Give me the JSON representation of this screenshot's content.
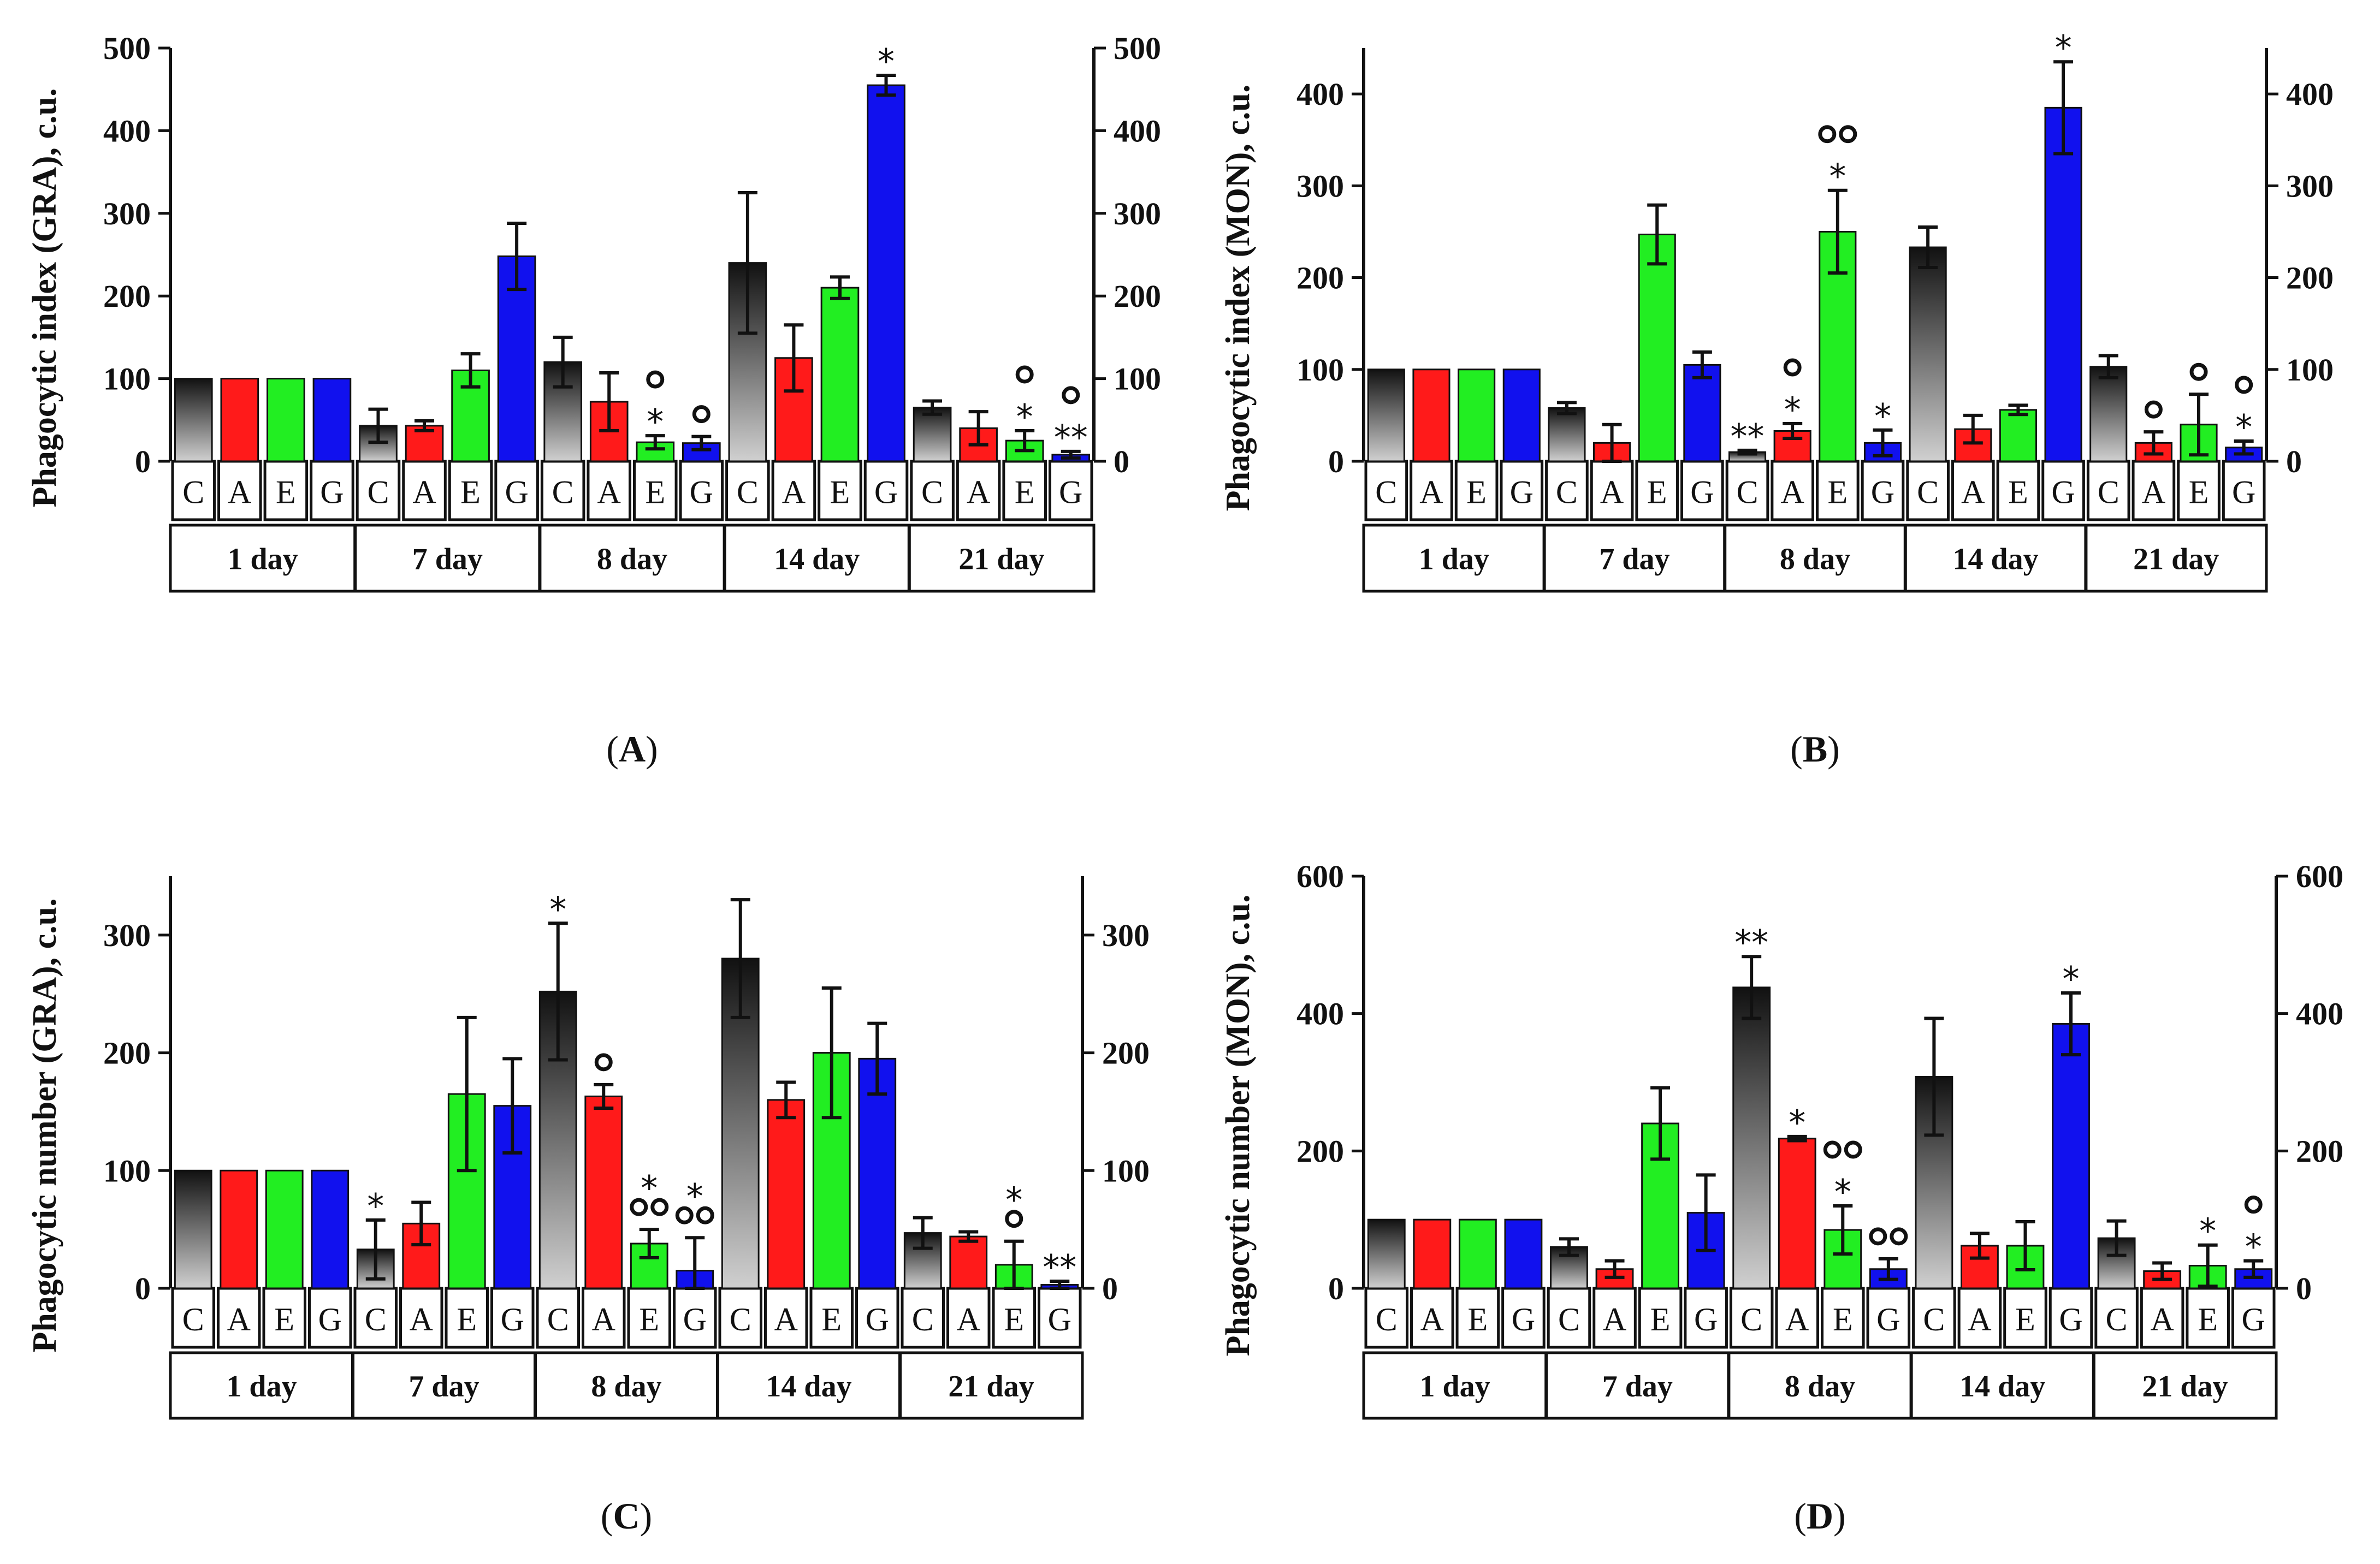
{
  "colors": {
    "C_top": "#111111",
    "C_bottom": "#d0d0d0",
    "A": "#ff1a1a",
    "E": "#22ee22",
    "G": "#1111ee"
  },
  "chart_data": [
    {
      "id": "A",
      "type": "bar",
      "panel_label": "A",
      "ylabel": "Phagocytic index (GRA), c.u.",
      "ylim": [
        0,
        500
      ],
      "yticks": [
        0,
        100,
        200,
        300,
        400,
        500
      ],
      "groups": [
        "1 day",
        "7 day",
        "8 day",
        "14 day",
        "21 day"
      ],
      "categories": [
        "C",
        "A",
        "E",
        "G"
      ],
      "values": [
        [
          100,
          100,
          100,
          100
        ],
        [
          43,
          43,
          110,
          248
        ],
        [
          120,
          72,
          23,
          22
        ],
        [
          240,
          125,
          210,
          455
        ],
        [
          65,
          40,
          25,
          8
        ]
      ],
      "errors": [
        [
          0,
          0,
          0,
          0
        ],
        [
          20,
          6,
          20,
          40
        ],
        [
          30,
          35,
          8,
          8
        ],
        [
          85,
          40,
          13,
          12
        ],
        [
          8,
          20,
          12,
          4
        ]
      ],
      "annotations": [
        {
          "g": 2,
          "c": 2,
          "lines": [
            "o",
            "*"
          ]
        },
        {
          "g": 2,
          "c": 3,
          "lines": [
            "o"
          ]
        },
        {
          "g": 3,
          "c": 3,
          "lines": [
            "*"
          ]
        },
        {
          "g": 4,
          "c": 2,
          "lines": [
            "o",
            "*"
          ]
        },
        {
          "g": 4,
          "c": 3,
          "lines": [
            "o",
            "**"
          ]
        }
      ]
    },
    {
      "id": "B",
      "type": "bar",
      "panel_label": "B",
      "ylabel": "Phagocytic index (MON), c.u.",
      "ylim": [
        0,
        450
      ],
      "yticks": [
        0,
        100,
        200,
        300,
        400
      ],
      "groups": [
        "1 day",
        "7 day",
        "8 day",
        "14 day",
        "21 day"
      ],
      "categories": [
        "C",
        "A",
        "E",
        "G"
      ],
      "values": [
        [
          100,
          100,
          100,
          100
        ],
        [
          58,
          20,
          247,
          105
        ],
        [
          10,
          33,
          250,
          20
        ],
        [
          233,
          35,
          56,
          385
        ],
        [
          103,
          20,
          40,
          15
        ]
      ],
      "errors": [
        [
          0,
          0,
          0,
          0
        ],
        [
          6,
          20,
          32,
          14
        ],
        [
          2,
          8,
          45,
          14
        ],
        [
          22,
          15,
          5,
          50
        ],
        [
          12,
          12,
          33,
          7
        ]
      ],
      "annotations": [
        {
          "g": 2,
          "c": 0,
          "lines": [
            "**"
          ]
        },
        {
          "g": 2,
          "c": 1,
          "lines": [
            "o",
            "*"
          ]
        },
        {
          "g": 2,
          "c": 2,
          "lines": [
            "oo",
            "*"
          ]
        },
        {
          "g": 2,
          "c": 3,
          "lines": [
            "*"
          ]
        },
        {
          "g": 3,
          "c": 3,
          "lines": [
            "*"
          ]
        },
        {
          "g": 4,
          "c": 1,
          "lines": [
            "o"
          ]
        },
        {
          "g": 4,
          "c": 2,
          "lines": [
            "o"
          ]
        },
        {
          "g": 4,
          "c": 3,
          "lines": [
            "o",
            "*"
          ]
        }
      ]
    },
    {
      "id": "C",
      "type": "bar",
      "panel_label": "C",
      "ylabel": "Phagocytic number (GRA), c.u.",
      "ylim": [
        0,
        350
      ],
      "yticks": [
        0,
        100,
        200,
        300
      ],
      "groups": [
        "1 day",
        "7 day",
        "8 day",
        "14 day",
        "21 day"
      ],
      "categories": [
        "C",
        "A",
        "E",
        "G"
      ],
      "values": [
        [
          100,
          100,
          100,
          100
        ],
        [
          33,
          55,
          165,
          155
        ],
        [
          252,
          163,
          38,
          15
        ],
        [
          280,
          160,
          200,
          195
        ],
        [
          47,
          44,
          20,
          3
        ]
      ],
      "errors": [
        [
          0,
          0,
          0,
          0
        ],
        [
          25,
          18,
          65,
          40
        ],
        [
          58,
          10,
          12,
          28
        ],
        [
          50,
          15,
          55,
          30
        ],
        [
          13,
          4,
          20,
          3
        ]
      ],
      "annotations": [
        {
          "g": 1,
          "c": 0,
          "lines": [
            "*"
          ]
        },
        {
          "g": 2,
          "c": 0,
          "lines": [
            "*"
          ]
        },
        {
          "g": 2,
          "c": 1,
          "lines": [
            "o"
          ]
        },
        {
          "g": 2,
          "c": 2,
          "lines": [
            "*",
            "oo"
          ]
        },
        {
          "g": 2,
          "c": 3,
          "lines": [
            "*",
            "oo"
          ]
        },
        {
          "g": 4,
          "c": 2,
          "lines": [
            "*",
            "o"
          ]
        },
        {
          "g": 4,
          "c": 3,
          "lines": [
            "**"
          ]
        }
      ]
    },
    {
      "id": "D",
      "type": "bar",
      "panel_label": "D",
      "ylabel": "Phagocytic number (MON), c.u.",
      "ylim": [
        0,
        600
      ],
      "yticks": [
        0,
        200,
        400,
        600
      ],
      "groups": [
        "1 day",
        "7 day",
        "8 day",
        "14 day",
        "21 day"
      ],
      "categories": [
        "C",
        "A",
        "E",
        "G"
      ],
      "values": [
        [
          100,
          100,
          100,
          100
        ],
        [
          60,
          28,
          240,
          110
        ],
        [
          438,
          218,
          85,
          28
        ],
        [
          308,
          62,
          62,
          385
        ],
        [
          73,
          25,
          33,
          28
        ]
      ],
      "errors": [
        [
          0,
          0,
          0,
          0
        ],
        [
          12,
          12,
          52,
          55
        ],
        [
          45,
          3,
          35,
          15
        ],
        [
          85,
          18,
          35,
          45
        ],
        [
          25,
          12,
          30,
          12
        ]
      ],
      "annotations": [
        {
          "g": 2,
          "c": 0,
          "lines": [
            "**"
          ]
        },
        {
          "g": 2,
          "c": 1,
          "lines": [
            "*"
          ]
        },
        {
          "g": 2,
          "c": 2,
          "lines": [
            "oo",
            "*"
          ]
        },
        {
          "g": 2,
          "c": 3,
          "lines": [
            "oo"
          ]
        },
        {
          "g": 3,
          "c": 3,
          "lines": [
            "*"
          ]
        },
        {
          "g": 4,
          "c": 2,
          "lines": [
            "*"
          ]
        },
        {
          "g": 4,
          "c": 3,
          "lines": [
            "o",
            "*"
          ]
        }
      ]
    }
  ]
}
